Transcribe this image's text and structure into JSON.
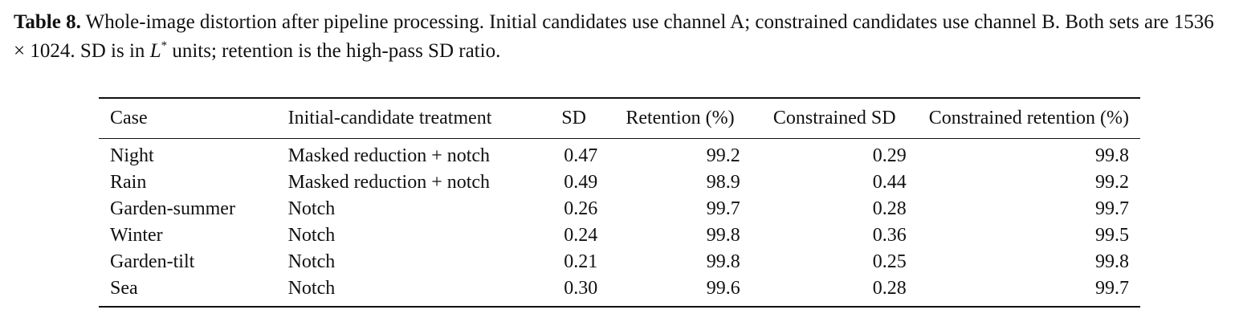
{
  "caption": {
    "label": "Table 8.",
    "text_before_math": " Whole-image distortion after pipeline processing. Initial candidates use channel A; constrained candidates use channel B. Both sets are 1536 × 1024. SD is in ",
    "math_symbol": "L",
    "math_superscript": "*",
    "text_after_math": " units; retention is the high-pass SD ratio."
  },
  "table": {
    "headers": [
      "Case",
      "Initial-candidate treatment",
      "SD",
      "Retention (%)",
      "Constrained SD",
      "Constrained retention (%)"
    ],
    "rows": [
      [
        "Night",
        "Masked reduction + notch",
        "0.47",
        "99.2",
        "0.29",
        "99.8"
      ],
      [
        "Rain",
        "Masked reduction + notch",
        "0.49",
        "98.9",
        "0.44",
        "99.2"
      ],
      [
        "Garden-summer",
        "Notch",
        "0.26",
        "99.7",
        "0.28",
        "99.7"
      ],
      [
        "Winter",
        "Notch",
        "0.24",
        "99.8",
        "0.36",
        "99.5"
      ],
      [
        "Garden-tilt",
        "Notch",
        "0.21",
        "99.8",
        "0.25",
        "99.8"
      ],
      [
        "Sea",
        "Notch",
        "0.30",
        "99.6",
        "0.28",
        "99.7"
      ]
    ]
  }
}
